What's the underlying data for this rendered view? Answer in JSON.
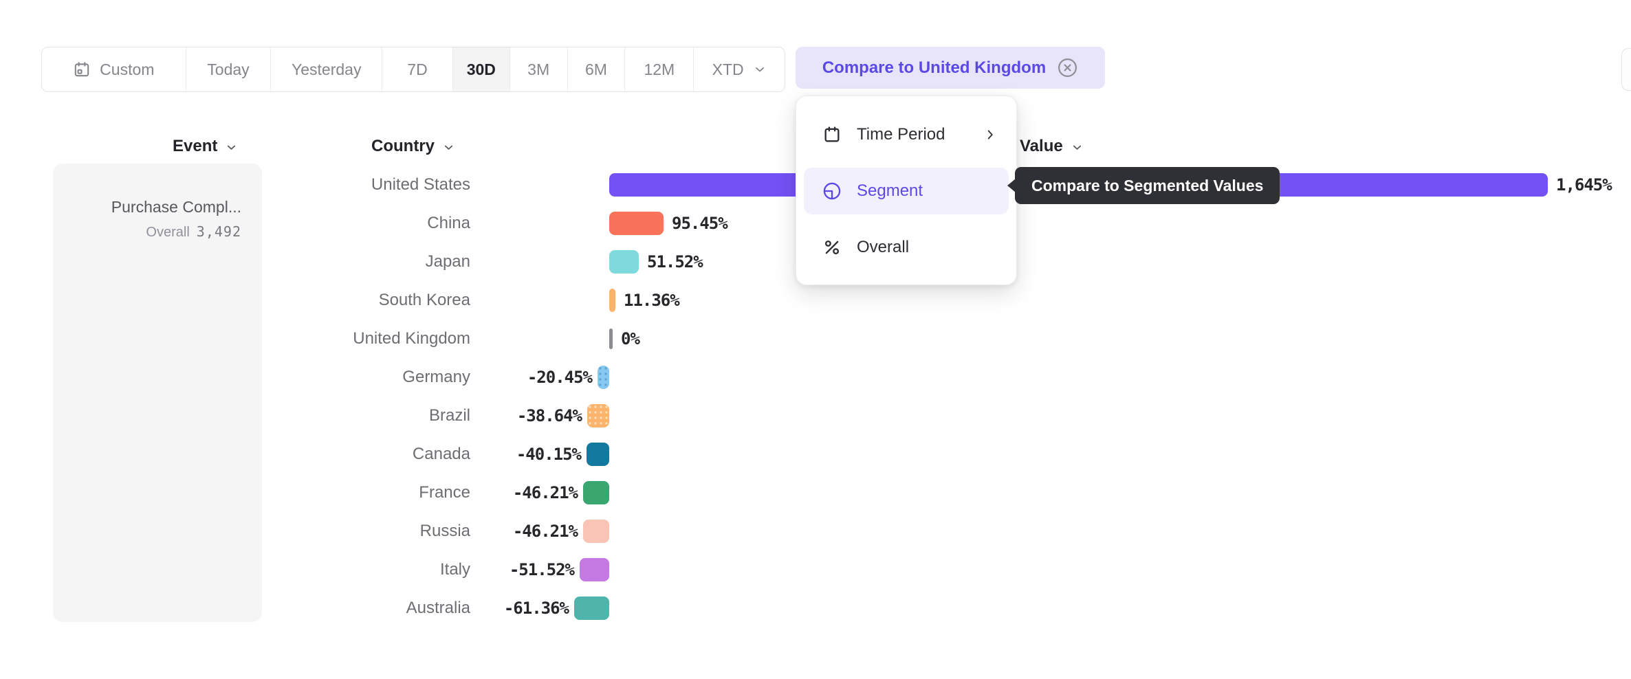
{
  "toolbar": {
    "ranges": [
      {
        "label": "Custom",
        "icon": "calendar-icon"
      },
      {
        "label": "Today"
      },
      {
        "label": "Yesterday"
      },
      {
        "label": "7D"
      },
      {
        "label": "30D",
        "selected": true
      },
      {
        "label": "3M"
      },
      {
        "label": "6M"
      },
      {
        "label": "12M"
      },
      {
        "label": "XTD",
        "chevron": true
      }
    ],
    "compare_chip": {
      "label": "Compare to United Kingdom",
      "close_icon": "x-circle-icon"
    }
  },
  "columns": {
    "event": "Event",
    "country": "Country",
    "value": "Value"
  },
  "event_panel": {
    "event_name": "Purchase Compl...",
    "overall_label": "Overall",
    "overall_value": "3,492"
  },
  "menu": {
    "items": [
      {
        "label": "Time Period",
        "icon": "calendar-icon",
        "has_submenu": true
      },
      {
        "label": "Segment",
        "icon": "segment-icon",
        "selected": true
      },
      {
        "label": "Overall",
        "icon": "percent-icon"
      }
    ]
  },
  "tooltip": {
    "text": "Compare to Segmented Values"
  },
  "chart_data": {
    "type": "bar",
    "orientation": "horizontal",
    "title": "",
    "xlabel": "% vs United Kingdom",
    "ylabel": "Country",
    "baseline": 0,
    "legend": "none",
    "grid": false,
    "categories": [
      "United States",
      "China",
      "Japan",
      "South Korea",
      "United Kingdom",
      "Germany",
      "Brazil",
      "Canada",
      "France",
      "Russia",
      "Italy",
      "Australia"
    ],
    "values": [
      1645,
      95.45,
      51.52,
      11.36,
      0,
      -20.45,
      -38.64,
      -40.15,
      -46.21,
      -46.21,
      -51.52,
      -61.36
    ],
    "value_labels": [
      "1,645%",
      "95.45%",
      "51.52%",
      "11.36%",
      "0%",
      "-20.45%",
      "-38.64%",
      "-40.15%",
      "-46.21%",
      "-46.21%",
      "-51.52%",
      "-61.36%"
    ],
    "colors": [
      "#7451f5",
      "#f8735a",
      "#7edadd",
      "#fcb46c",
      "#8b8b90",
      "#87c8f0",
      "#fcb46c",
      "#13799f",
      "#3aa771",
      "#f9c3b5",
      "#c579e2",
      "#4fb4ab"
    ],
    "patterns": [
      "solid",
      "solid",
      "solid",
      "solid",
      "solid",
      "dots-dark",
      "dots-light",
      "solid",
      "solid",
      "solid",
      "solid",
      "solid"
    ]
  }
}
